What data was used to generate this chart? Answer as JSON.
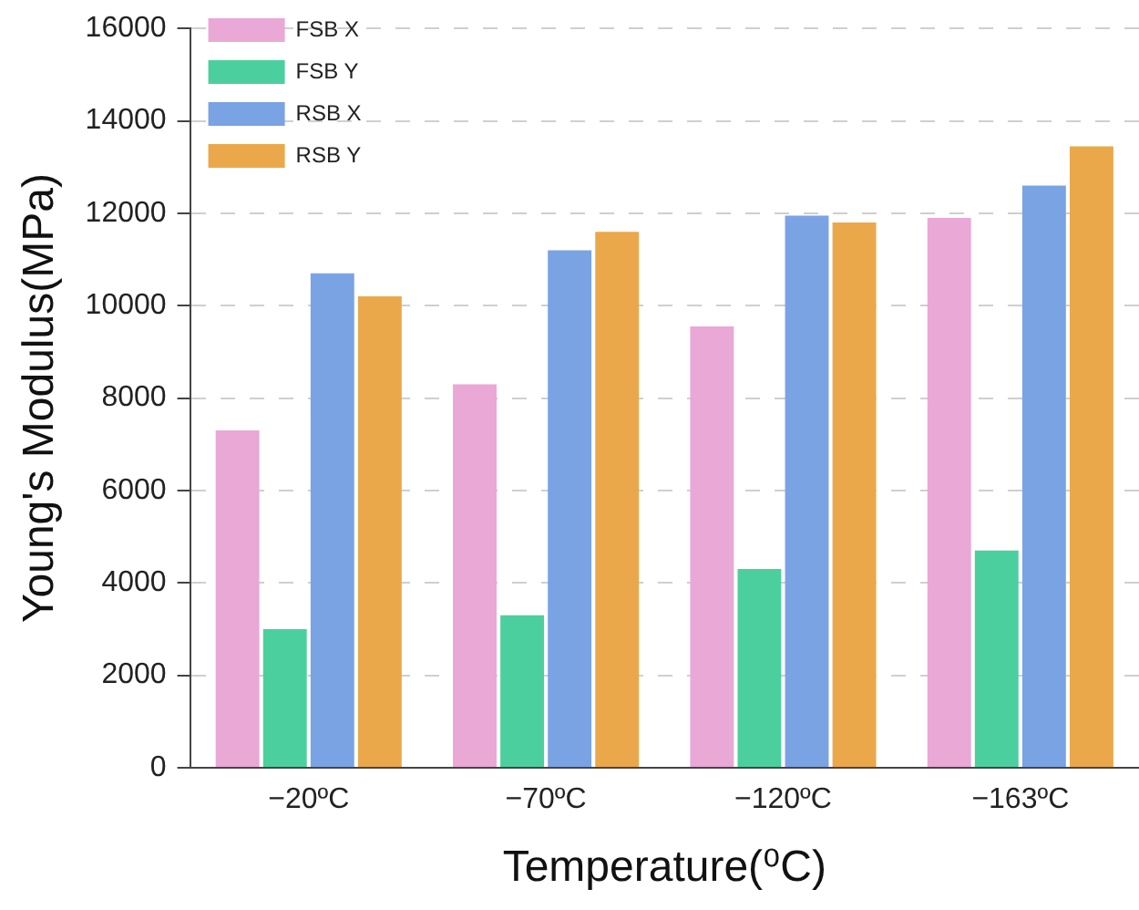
{
  "chart_data": {
    "type": "bar",
    "xlabel": "Temperature(⁰C)",
    "ylabel": "Young's Modulus(MPa)",
    "categories": [
      "−20ºC",
      "−70ºC",
      "−120ºC",
      "−163ºC"
    ],
    "series": [
      {
        "name": "FSB X",
        "color": "#e9a8d6",
        "values": [
          7300,
          8300,
          9550,
          11900
        ]
      },
      {
        "name": "FSB Y",
        "color": "#4ccf9e",
        "values": [
          3000,
          3300,
          4300,
          4700
        ]
      },
      {
        "name": "RSB X",
        "color": "#7aa3e3",
        "values": [
          10700,
          11200,
          11950,
          12600
        ]
      },
      {
        "name": "RSB Y",
        "color": "#eaa84a",
        "values": [
          10200,
          11600,
          11800,
          13450
        ]
      }
    ],
    "ylim": [
      0,
      16000
    ],
    "yticks": [
      0,
      2000,
      4000,
      6000,
      8000,
      10000,
      12000,
      14000,
      16000
    ],
    "grid": "y",
    "legend": "top left"
  }
}
